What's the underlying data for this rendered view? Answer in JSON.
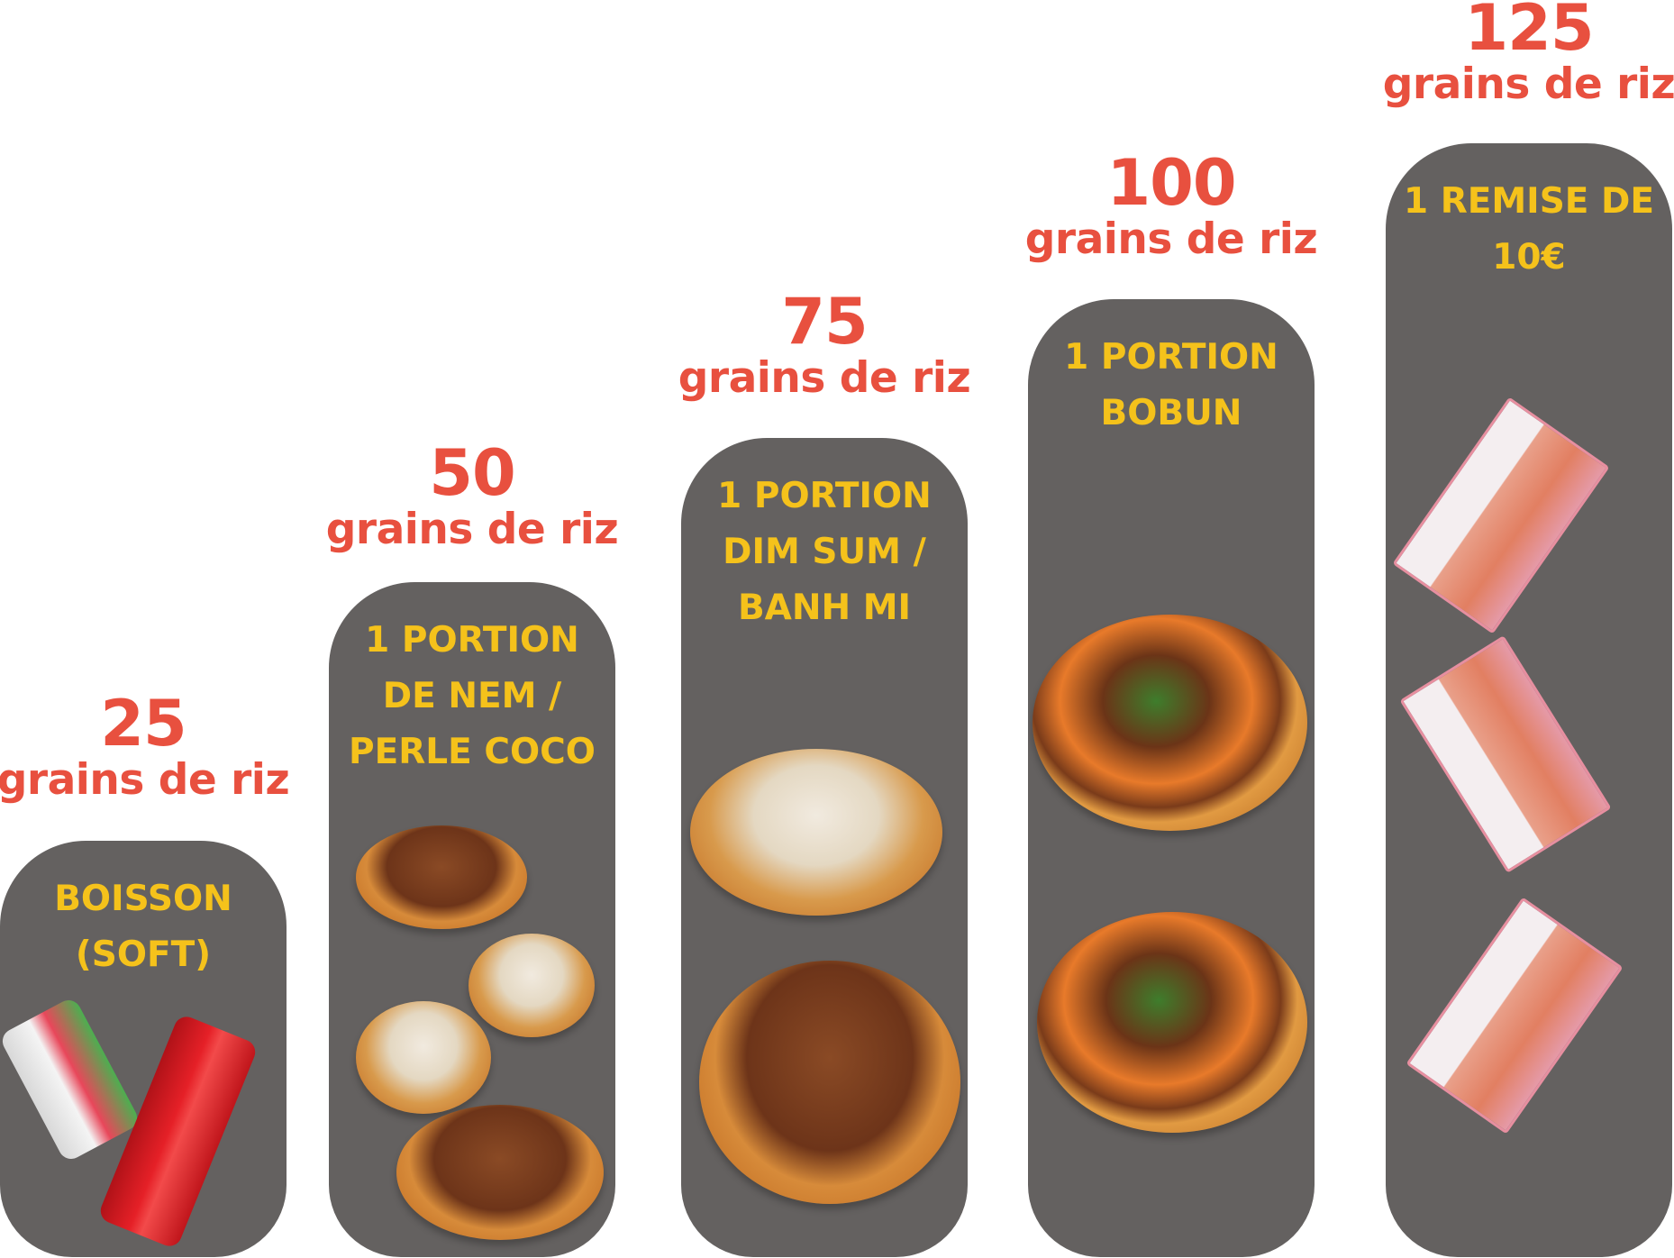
{
  "colors": {
    "price": "#e8503f",
    "title": "#f5c21b",
    "card": "#646160",
    "background": "#ffffff"
  },
  "rewards": [
    {
      "points": "25",
      "unit": "grains de riz",
      "title_lines": [
        "BOISSON",
        "(SOFT)"
      ],
      "images": [
        "litchi-drink-can",
        "coca-cola-can"
      ]
    },
    {
      "points": "50",
      "unit": "grains de riz",
      "title_lines": [
        "1 PORTION",
        "DE NEM /",
        "PERLE COCO"
      ],
      "images": [
        "nem-plate",
        "perle-coco-bowl-brown",
        "perle-coco-bowl-white",
        "nem-plate-2"
      ]
    },
    {
      "points": "75",
      "unit": "grains de riz",
      "title_lines": [
        "1 PORTION",
        "DIM SUM /",
        "BANH MI"
      ],
      "images": [
        "dim-sum-bowl",
        "banh-mi-bowl"
      ]
    },
    {
      "points": "100",
      "unit": "grains de riz",
      "title_lines": [
        "1 PORTION",
        "BOBUN"
      ],
      "images": [
        "bobun-bowl",
        "bobun-bowl-2"
      ]
    },
    {
      "points": "125",
      "unit": "grains de riz",
      "title_lines": [
        "1 REMISE DE",
        "10€"
      ],
      "images": [
        "ten-euro-banknote",
        "ten-euro-banknote-2",
        "ten-euro-banknote-3"
      ]
    }
  ]
}
